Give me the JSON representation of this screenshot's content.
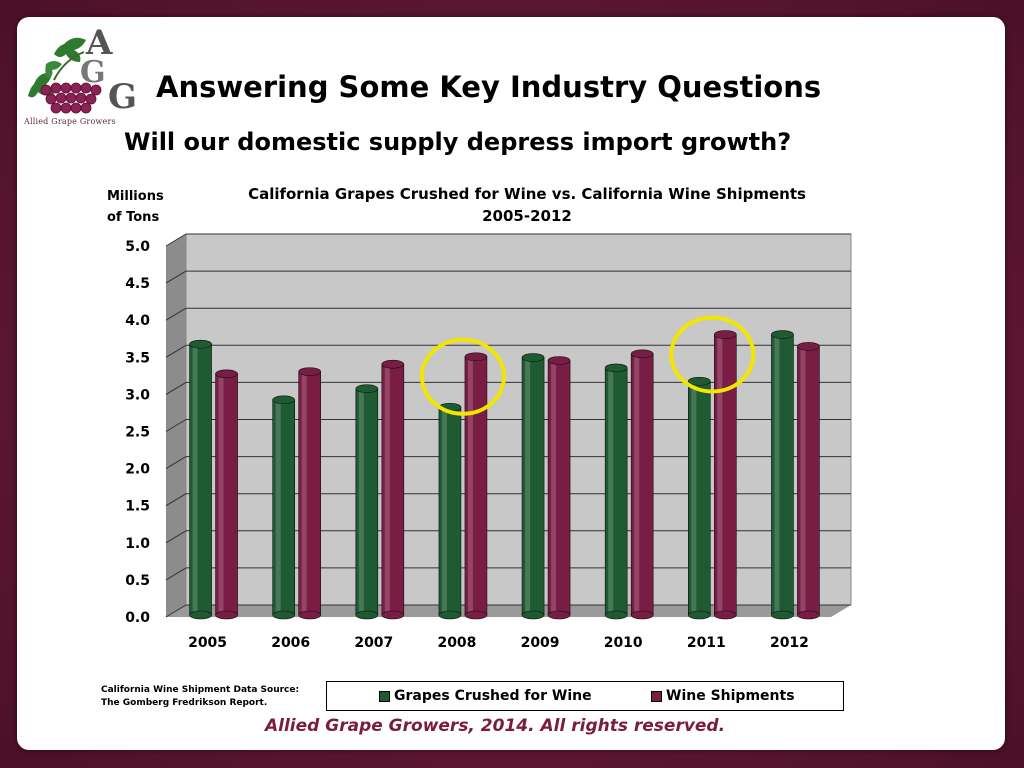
{
  "header": {
    "title": "Answering Some Key Industry Questions",
    "subtitle": "Will our domestic supply depress import growth?"
  },
  "logo": {
    "letters": "AGG",
    "caption": "Allied Grape Growers"
  },
  "source": {
    "line1": "California Wine Shipment  Data Source:",
    "line2": "The Gomberg Fredrikson Report."
  },
  "footer": {
    "copyright": "Allied Grape Growers, 2014.  All rights reserved."
  },
  "colors": {
    "crushed": "#1e5a32",
    "shipments": "#7a1d45",
    "highlight": "#f2e600",
    "frame": "#5e1733"
  },
  "chart_data": {
    "type": "bar",
    "title": "California Grapes Crushed for Wine vs. California Wine Shipments",
    "title_line2": "2005-2012",
    "ylabel_line1": "Millions",
    "ylabel_line2": "of Tons",
    "categories": [
      "2005",
      "2006",
      "2007",
      "2008",
      "2009",
      "2010",
      "2011",
      "2012"
    ],
    "series": [
      {
        "name": "Grapes Crushed for Wine",
        "values": [
          3.65,
          2.9,
          3.05,
          2.8,
          3.47,
          3.33,
          3.15,
          3.78
        ]
      },
      {
        "name": "Wine Shipments",
        "values": [
          3.25,
          3.28,
          3.38,
          3.48,
          3.43,
          3.52,
          3.78,
          3.62
        ]
      }
    ],
    "ylim": [
      0,
      5.0
    ],
    "yticks": [
      "0.0",
      "0.5",
      "1.0",
      "1.5",
      "2.0",
      "2.5",
      "3.0",
      "3.5",
      "4.0",
      "4.5",
      "5.0"
    ],
    "highlighted_categories": [
      "2008",
      "2011"
    ],
    "grid": true,
    "legend_position": "bottom"
  }
}
